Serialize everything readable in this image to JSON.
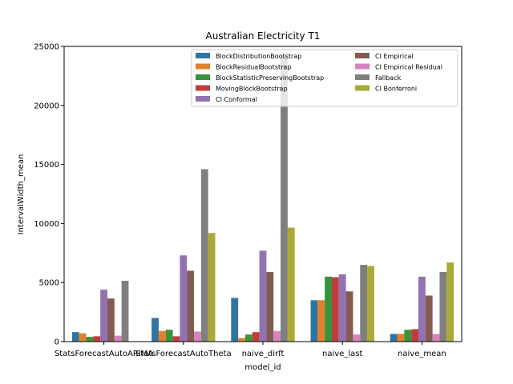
{
  "chart_data": {
    "type": "bar",
    "title": "Australian Electricity T1",
    "xlabel": "model_id",
    "ylabel": "IntervalWidth_mean",
    "ylim": [
      0,
      25000
    ],
    "yticks": [
      0,
      5000,
      10000,
      15000,
      20000,
      25000
    ],
    "ytick_labels": [
      "0",
      "5000",
      "10000",
      "15000",
      "20000",
      "25000"
    ],
    "grid": false,
    "legend_position": "top-right",
    "legend_columns": 2,
    "categories": [
      "StatsForecastAutoARIMA",
      "StatsForecastAutoTheta",
      "naive_dirft",
      "naive_last",
      "naive_mean"
    ],
    "series": [
      {
        "name": "BlockDistributionBootstrap",
        "color": "#3274a1",
        "values": [
          800,
          2000,
          3700,
          3500,
          650
        ]
      },
      {
        "name": "BlockResidualBootstrap",
        "color": "#e1812c",
        "values": [
          700,
          900,
          300,
          3500,
          650
        ]
      },
      {
        "name": "BlockStatisticPreservingBootstrap",
        "color": "#3a923a",
        "values": [
          400,
          1000,
          600,
          5500,
          1000
        ]
      },
      {
        "name": "MovingBlockBootstrap",
        "color": "#c03d3e",
        "values": [
          450,
          450,
          800,
          5450,
          1050
        ]
      },
      {
        "name": "CI Conformal",
        "color": "#9372b2",
        "values": [
          4400,
          7300,
          7700,
          5700,
          5500
        ]
      },
      {
        "name": "CI Empirical",
        "color": "#845b53",
        "values": [
          3650,
          6000,
          5900,
          4250,
          3900
        ]
      },
      {
        "name": "CI Empirical Residual",
        "color": "#d684bd",
        "values": [
          500,
          850,
          900,
          600,
          650
        ]
      },
      {
        "name": "Fallback",
        "color": "#7f7f7f",
        "values": [
          5150,
          14600,
          24200,
          6500,
          5900
        ]
      },
      {
        "name": "CI Bonferroni",
        "color": "#a9aa35",
        "values": [
          null,
          9200,
          9650,
          6400,
          6700
        ]
      }
    ]
  }
}
